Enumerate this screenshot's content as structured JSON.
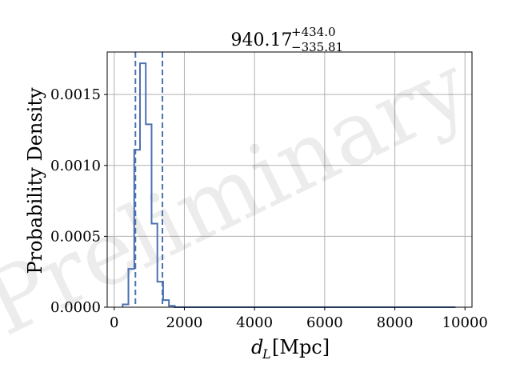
{
  "chart_data": {
    "type": "histogram",
    "title": {
      "median": "940.17",
      "plus": "+434.0",
      "minus": "−335.81"
    },
    "xlabel_var": "d",
    "xlabel_sub": "L",
    "xlabel_unit": "[Mpc]",
    "ylabel": "Probability Density",
    "watermark": "Preliminary",
    "xlim": [
      -200,
      10200
    ],
    "ylim": [
      0,
      0.0018
    ],
    "xticks": [
      {
        "value": 0,
        "label": "0"
      },
      {
        "value": 2000,
        "label": "2000"
      },
      {
        "value": 4000,
        "label": "4000"
      },
      {
        "value": 6000,
        "label": "6000"
      },
      {
        "value": 8000,
        "label": "8000"
      },
      {
        "value": 10000,
        "label": "10000"
      }
    ],
    "yticks": [
      {
        "value": 0.0,
        "label": "0.0000"
      },
      {
        "value": 0.0005,
        "label": "0.0005"
      },
      {
        "value": 0.001,
        "label": "0.0010"
      },
      {
        "value": 0.0015,
        "label": "0.0015"
      }
    ],
    "grid": true,
    "line_color": "#4c72b0",
    "bin_edges": [
      240,
      405,
      570,
      735,
      900,
      1065,
      1230,
      1395,
      1560,
      1725,
      1890,
      2055,
      9730
    ],
    "values": [
      2e-05,
      0.00027,
      0.00111,
      0.00172,
      0.00129,
      0.00059,
      0.00018,
      5e-05,
      1e-05,
      0.0,
      0.0,
      0.0
    ],
    "credible_interval": [
      604.36,
      1374.17
    ]
  }
}
